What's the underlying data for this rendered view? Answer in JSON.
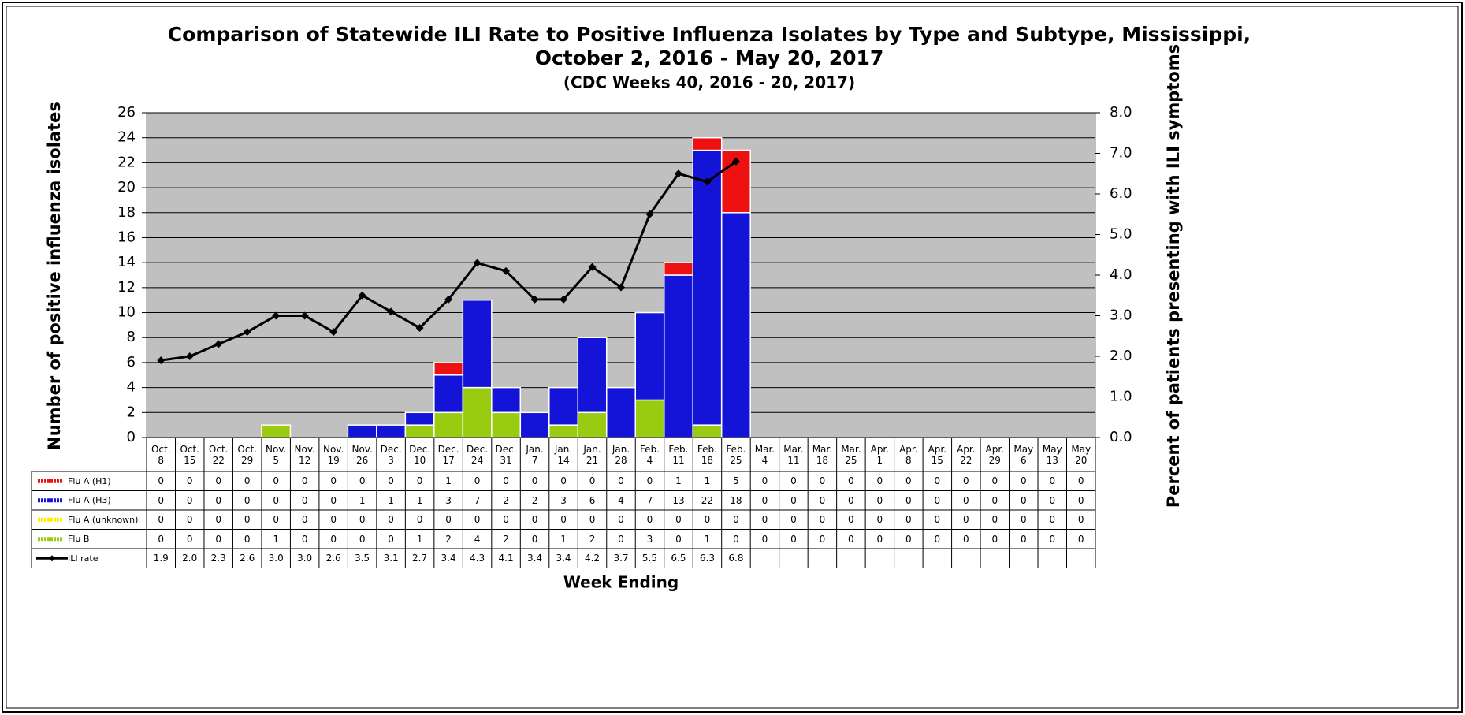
{
  "chart_data": {
    "type": "bar",
    "title": "Comparison of Statewide ILI Rate to Positive Influenza Isolates by Type and Subtype, Mississippi,",
    "title_line2": "October 2, 2016 - May 20, 2017",
    "subtitle": "(CDC Weeks 40, 2016 - 20, 2017)",
    "x_label": "Week Ending",
    "y_label": "Number of positive influenza isolates",
    "y2_label": "Percent of patients presenting with ILI symptoms",
    "categories": [
      "Oct. 8",
      "Oct. 15",
      "Oct. 22",
      "Oct. 29",
      "Nov. 5",
      "Nov. 12",
      "Nov. 19",
      "Nov. 26",
      "Dec. 3",
      "Dec. 10",
      "Dec. 17",
      "Dec. 24",
      "Dec. 31",
      "Jan. 7",
      "Jan. 14",
      "Jan. 21",
      "Jan. 28",
      "Feb. 4",
      "Feb. 11",
      "Feb. 18",
      "Feb. 25",
      "Mar. 4",
      "Mar. 11",
      "Mar. 18",
      "Mar. 25",
      "Apr. 1",
      "Apr. 8",
      "Apr. 15",
      "Apr. 22",
      "Apr. 29",
      "May 6",
      "May 13",
      "May 20"
    ],
    "series": [
      {
        "name": "Flu A (H1)",
        "type": "bar",
        "color": "#ee1111",
        "values": [
          0,
          0,
          0,
          0,
          0,
          0,
          0,
          0,
          0,
          0,
          1,
          0,
          0,
          0,
          0,
          0,
          0,
          0,
          1,
          1,
          5,
          0,
          0,
          0,
          0,
          0,
          0,
          0,
          0,
          0,
          0,
          0,
          0
        ]
      },
      {
        "name": "Flu A (H3)",
        "type": "bar",
        "color": "#1414d8",
        "values": [
          0,
          0,
          0,
          0,
          0,
          0,
          0,
          1,
          1,
          1,
          3,
          7,
          2,
          2,
          3,
          6,
          4,
          7,
          13,
          22,
          18,
          0,
          0,
          0,
          0,
          0,
          0,
          0,
          0,
          0,
          0,
          0,
          0
        ]
      },
      {
        "name": "Flu A (unknown)",
        "type": "bar",
        "color": "#ffee00",
        "values": [
          0,
          0,
          0,
          0,
          0,
          0,
          0,
          0,
          0,
          0,
          0,
          0,
          0,
          0,
          0,
          0,
          0,
          0,
          0,
          0,
          0,
          0,
          0,
          0,
          0,
          0,
          0,
          0,
          0,
          0,
          0,
          0,
          0
        ]
      },
      {
        "name": "Flu B",
        "type": "bar",
        "color": "#99cc11",
        "values": [
          0,
          0,
          0,
          0,
          1,
          0,
          0,
          0,
          0,
          1,
          2,
          4,
          2,
          0,
          1,
          2,
          0,
          3,
          0,
          1,
          0,
          0,
          0,
          0,
          0,
          0,
          0,
          0,
          0,
          0,
          0,
          0,
          0
        ]
      },
      {
        "name": "ILI rate",
        "type": "line",
        "axis": "y2",
        "color": "#000000",
        "values": [
          1.9,
          2.0,
          2.3,
          2.6,
          3.0,
          3.0,
          2.6,
          3.5,
          3.1,
          2.7,
          3.4,
          4.3,
          4.1,
          3.4,
          3.4,
          4.2,
          3.7,
          5.5,
          6.5,
          6.3,
          6.8,
          null,
          null,
          null,
          null,
          null,
          null,
          null,
          null,
          null,
          null,
          null,
          null
        ],
        "value_labels": [
          "1.9",
          "2.0",
          "2.3",
          "2.6",
          "3.0",
          "3.0",
          "2.6",
          "3.5",
          "3.1",
          "2.7",
          "3.4",
          "4.3",
          "4.1",
          "3.4",
          "3.4",
          "4.2",
          "3.7",
          "5.5",
          "6.5",
          "6.3",
          "6.8",
          null,
          null,
          null,
          null,
          null,
          null,
          null,
          null,
          null,
          null,
          null,
          null
        ]
      }
    ],
    "ylim": [
      0,
      26
    ],
    "yticks": [
      0,
      2,
      4,
      6,
      8,
      10,
      12,
      14,
      16,
      18,
      20,
      22,
      24,
      26
    ],
    "y2lim": [
      0,
      8
    ],
    "y2ticks": [
      {
        "value": 0,
        "label": "0.0"
      },
      {
        "value": 1,
        "label": "1.0"
      },
      {
        "value": 2,
        "label": "2.0"
      },
      {
        "value": 3,
        "label": "3.0"
      },
      {
        "value": 4,
        "label": "4.0"
      },
      {
        "value": 5,
        "label": "5.0"
      },
      {
        "value": 6,
        "label": "6.0"
      },
      {
        "value": 7,
        "label": "7.0"
      },
      {
        "value": 8,
        "label": "8.0"
      }
    ],
    "grid": true
  }
}
